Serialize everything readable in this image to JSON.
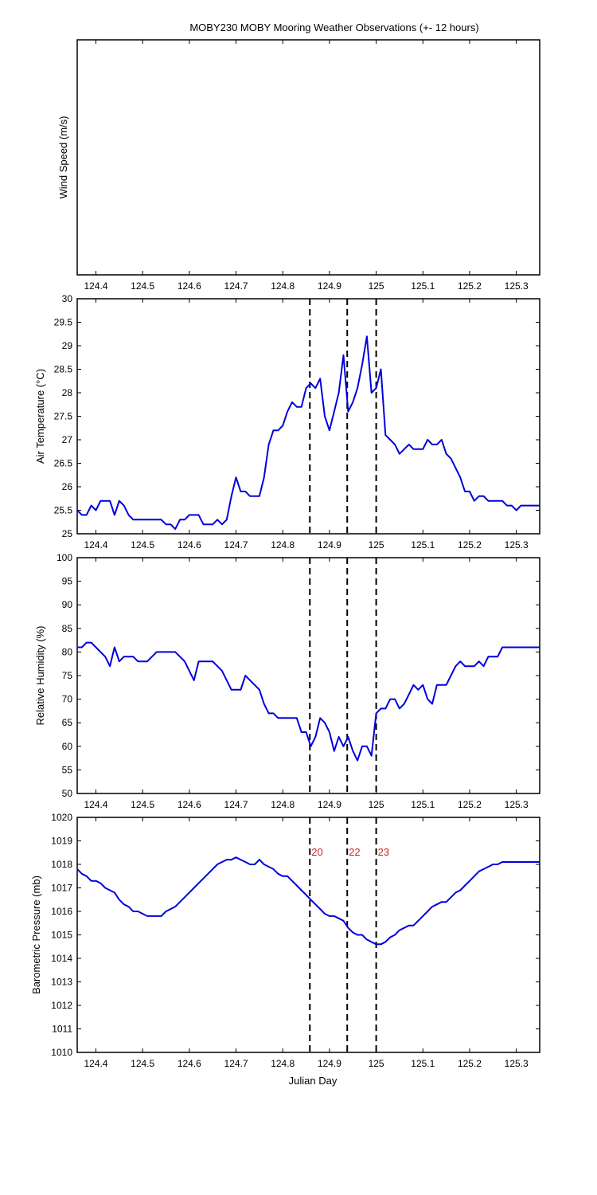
{
  "title": "MOBY230 MOBY Mooring Weather Observations (+- 12 hours)",
  "xlabel": "Julian Day",
  "colors": {
    "series": "#0000dd",
    "annotation": "#cc2222",
    "axis": "#000000",
    "marker": "#000000"
  },
  "chart_data": [
    {
      "type": "line",
      "id": "wind",
      "ylabel": "Wind Speed (m/s)",
      "xlim": [
        124.36,
        125.35
      ],
      "ylim": null,
      "xticks": [
        "124.4",
        "124.5",
        "124.6",
        "124.7",
        "124.8",
        "124.9",
        "125",
        "125.1",
        "125.2",
        "125.3"
      ],
      "yticks": [],
      "grid": false,
      "x": [],
      "y": []
    },
    {
      "type": "line",
      "id": "air_temperature",
      "ylabel": "Air Temperature (°C)",
      "xlim": [
        124.36,
        125.35
      ],
      "ylim": [
        25,
        30
      ],
      "xticks": [
        "124.4",
        "124.5",
        "124.6",
        "124.7",
        "124.8",
        "124.9",
        "125",
        "125.1",
        "125.2",
        "125.3"
      ],
      "yticks": [
        "25",
        "25.5",
        "26",
        "26.5",
        "27",
        "27.5",
        "28",
        "28.5",
        "29",
        "29.5",
        "30"
      ],
      "grid": false,
      "markers": [
        124.858,
        124.938,
        125.0
      ],
      "x": [
        124.36,
        124.37,
        124.38,
        124.39,
        124.4,
        124.41,
        124.42,
        124.43,
        124.44,
        124.45,
        124.46,
        124.47,
        124.48,
        124.49,
        124.5,
        124.51,
        124.52,
        124.53,
        124.54,
        124.55,
        124.56,
        124.57,
        124.58,
        124.59,
        124.6,
        124.61,
        124.62,
        124.63,
        124.64,
        124.65,
        124.66,
        124.67,
        124.68,
        124.69,
        124.7,
        124.71,
        124.72,
        124.73,
        124.74,
        124.75,
        124.76,
        124.77,
        124.78,
        124.79,
        124.8,
        124.81,
        124.82,
        124.83,
        124.84,
        124.85,
        124.86,
        124.87,
        124.88,
        124.89,
        124.9,
        124.91,
        124.92,
        124.93,
        124.94,
        124.95,
        124.96,
        124.97,
        124.98,
        124.99,
        125.0,
        125.01,
        125.02,
        125.03,
        125.04,
        125.05,
        125.06,
        125.07,
        125.08,
        125.09,
        125.1,
        125.11,
        125.12,
        125.13,
        125.14,
        125.15,
        125.16,
        125.17,
        125.18,
        125.19,
        125.2,
        125.21,
        125.22,
        125.23,
        125.24,
        125.25,
        125.26,
        125.27,
        125.28,
        125.29,
        125.3,
        125.31,
        125.32,
        125.33,
        125.34,
        125.35
      ],
      "y": [
        25.5,
        25.4,
        25.4,
        25.6,
        25.5,
        25.7,
        25.7,
        25.7,
        25.4,
        25.7,
        25.6,
        25.4,
        25.3,
        25.3,
        25.3,
        25.3,
        25.3,
        25.3,
        25.3,
        25.2,
        25.2,
        25.1,
        25.3,
        25.3,
        25.4,
        25.4,
        25.4,
        25.2,
        25.2,
        25.2,
        25.3,
        25.2,
        25.3,
        25.8,
        26.2,
        25.9,
        25.9,
        25.8,
        25.8,
        25.8,
        26.2,
        26.9,
        27.2,
        27.2,
        27.3,
        27.6,
        27.8,
        27.7,
        27.7,
        28.1,
        28.2,
        28.1,
        28.3,
        27.5,
        27.2,
        27.6,
        28.0,
        28.8,
        27.6,
        27.8,
        28.1,
        28.6,
        29.2,
        28.0,
        28.1,
        28.5,
        27.1,
        27.0,
        26.9,
        26.7,
        26.8,
        26.9,
        26.8,
        26.8,
        26.8,
        27.0,
        26.9,
        26.9,
        27.0,
        26.7,
        26.6,
        26.4,
        26.2,
        25.9,
        25.9,
        25.7,
        25.8,
        25.8,
        25.7,
        25.7,
        25.7,
        25.7,
        25.6,
        25.6,
        25.5,
        25.6,
        25.6,
        25.6,
        25.6,
        25.6
      ]
    },
    {
      "type": "line",
      "id": "relative_humidity",
      "ylabel": "Relative Humidity (%)",
      "xlim": [
        124.36,
        125.35
      ],
      "ylim": [
        50,
        100
      ],
      "xticks": [
        "124.4",
        "124.5",
        "124.6",
        "124.7",
        "124.8",
        "124.9",
        "125",
        "125.1",
        "125.2",
        "125.3"
      ],
      "yticks": [
        "50",
        "55",
        "60",
        "65",
        "70",
        "75",
        "80",
        "85",
        "90",
        "95",
        "100"
      ],
      "grid": false,
      "markers": [
        124.858,
        124.938,
        125.0
      ],
      "x": [
        124.36,
        124.37,
        124.38,
        124.39,
        124.4,
        124.41,
        124.42,
        124.43,
        124.44,
        124.45,
        124.46,
        124.47,
        124.48,
        124.49,
        124.5,
        124.51,
        124.52,
        124.53,
        124.54,
        124.55,
        124.56,
        124.57,
        124.58,
        124.59,
        124.6,
        124.61,
        124.62,
        124.63,
        124.64,
        124.65,
        124.66,
        124.67,
        124.68,
        124.69,
        124.7,
        124.71,
        124.72,
        124.73,
        124.74,
        124.75,
        124.76,
        124.77,
        124.78,
        124.79,
        124.8,
        124.81,
        124.82,
        124.83,
        124.84,
        124.85,
        124.86,
        124.87,
        124.88,
        124.89,
        124.9,
        124.91,
        124.92,
        124.93,
        124.94,
        124.95,
        124.96,
        124.97,
        124.98,
        124.99,
        125.0,
        125.01,
        125.02,
        125.03,
        125.04,
        125.05,
        125.06,
        125.07,
        125.08,
        125.09,
        125.1,
        125.11,
        125.12,
        125.13,
        125.14,
        125.15,
        125.16,
        125.17,
        125.18,
        125.19,
        125.2,
        125.21,
        125.22,
        125.23,
        125.24,
        125.25,
        125.26,
        125.27,
        125.28,
        125.29,
        125.3,
        125.31,
        125.32,
        125.33,
        125.34,
        125.35
      ],
      "y": [
        81,
        81,
        82,
        82,
        81,
        80,
        79,
        77,
        81,
        78,
        79,
        79,
        79,
        78,
        78,
        78,
        79,
        80,
        80,
        80,
        80,
        80,
        79,
        78,
        76,
        74,
        78,
        78,
        78,
        78,
        77,
        76,
        74,
        72,
        72,
        72,
        75,
        74,
        73,
        72,
        69,
        67,
        67,
        66,
        66,
        66,
        66,
        66,
        63,
        63,
        60,
        62,
        66,
        65,
        63,
        59,
        62,
        60,
        62,
        59,
        57,
        60,
        60,
        58,
        67,
        68,
        68,
        70,
        70,
        68,
        69,
        71,
        73,
        72,
        73,
        70,
        69,
        73,
        73,
        73,
        75,
        77,
        78,
        77,
        77,
        77,
        78,
        77,
        79,
        79,
        79,
        81,
        81,
        81,
        81,
        81,
        81,
        81,
        81,
        81
      ]
    },
    {
      "type": "line",
      "id": "barometric_pressure",
      "ylabel": "Barometric Pressure (mb)",
      "xlim": [
        124.36,
        125.35
      ],
      "ylim": [
        1010,
        1020
      ],
      "xticks": [
        "124.4",
        "124.5",
        "124.6",
        "124.7",
        "124.8",
        "124.9",
        "125",
        "125.1",
        "125.2",
        "125.3"
      ],
      "yticks": [
        "1010",
        "1011",
        "1012",
        "1013",
        "1014",
        "1015",
        "1016",
        "1017",
        "1018",
        "1019",
        "1020"
      ],
      "grid": false,
      "markers": [
        124.858,
        124.938,
        125.0
      ],
      "annotations": [
        "20",
        "22",
        "23"
      ],
      "x": [
        124.36,
        124.37,
        124.38,
        124.39,
        124.4,
        124.41,
        124.42,
        124.43,
        124.44,
        124.45,
        124.46,
        124.47,
        124.48,
        124.49,
        124.5,
        124.51,
        124.52,
        124.53,
        124.54,
        124.55,
        124.56,
        124.57,
        124.58,
        124.59,
        124.6,
        124.61,
        124.62,
        124.63,
        124.64,
        124.65,
        124.66,
        124.67,
        124.68,
        124.69,
        124.7,
        124.71,
        124.72,
        124.73,
        124.74,
        124.75,
        124.76,
        124.77,
        124.78,
        124.79,
        124.8,
        124.81,
        124.82,
        124.83,
        124.84,
        124.85,
        124.86,
        124.87,
        124.88,
        124.89,
        124.9,
        124.91,
        124.92,
        124.93,
        124.94,
        124.95,
        124.96,
        124.97,
        124.98,
        124.99,
        125.0,
        125.01,
        125.02,
        125.03,
        125.04,
        125.05,
        125.06,
        125.07,
        125.08,
        125.09,
        125.1,
        125.11,
        125.12,
        125.13,
        125.14,
        125.15,
        125.16,
        125.17,
        125.18,
        125.19,
        125.2,
        125.21,
        125.22,
        125.23,
        125.24,
        125.25,
        125.26,
        125.27,
        125.28,
        125.29,
        125.3,
        125.31,
        125.32,
        125.33,
        125.34,
        125.35
      ],
      "y": [
        1017.8,
        1017.6,
        1017.5,
        1017.3,
        1017.3,
        1017.2,
        1017.0,
        1016.9,
        1016.8,
        1016.5,
        1016.3,
        1016.2,
        1016.0,
        1016.0,
        1015.9,
        1015.8,
        1015.8,
        1015.8,
        1015.8,
        1016.0,
        1016.1,
        1016.2,
        1016.4,
        1016.6,
        1016.8,
        1017.0,
        1017.2,
        1017.4,
        1017.6,
        1017.8,
        1018.0,
        1018.1,
        1018.2,
        1018.2,
        1018.3,
        1018.2,
        1018.1,
        1018.0,
        1018.0,
        1018.2,
        1018.0,
        1017.9,
        1017.8,
        1017.6,
        1017.5,
        1017.5,
        1017.3,
        1017.1,
        1016.9,
        1016.7,
        1016.5,
        1016.3,
        1016.1,
        1015.9,
        1015.8,
        1015.8,
        1015.7,
        1015.6,
        1015.3,
        1015.1,
        1015.0,
        1015.0,
        1014.8,
        1014.7,
        1014.6,
        1014.6,
        1014.7,
        1014.9,
        1015.0,
        1015.2,
        1015.3,
        1015.4,
        1015.4,
        1015.6,
        1015.8,
        1016.0,
        1016.2,
        1016.3,
        1016.4,
        1016.4,
        1016.6,
        1016.8,
        1016.9,
        1017.1,
        1017.3,
        1017.5,
        1017.7,
        1017.8,
        1017.9,
        1018.0,
        1018.0,
        1018.1,
        1018.1,
        1018.1,
        1018.1,
        1018.1,
        1018.1,
        1018.1,
        1018.1,
        1018.1
      ]
    }
  ]
}
